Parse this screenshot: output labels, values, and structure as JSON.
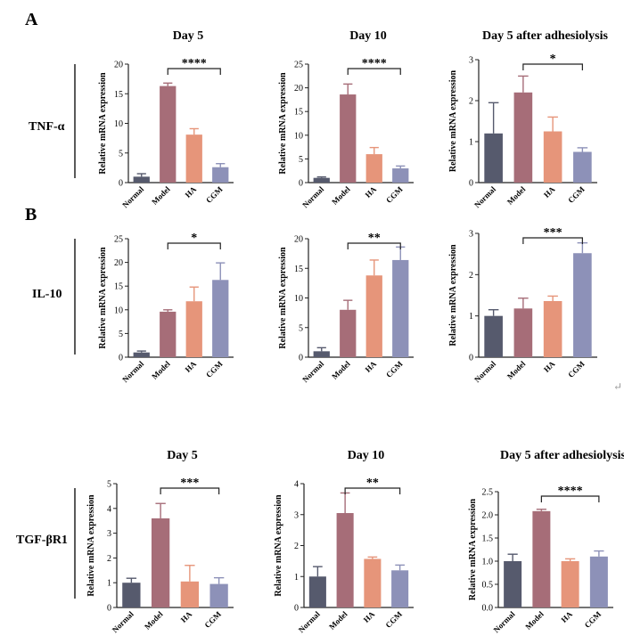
{
  "panel_letters": [
    "A",
    "B"
  ],
  "enter_symbol": "↵",
  "colors": {
    "Normal": "#565a6d",
    "Model": "#a66d78",
    "HA": "#e6957a",
    "CGM": "#8d91b8",
    "axis": "#222222"
  },
  "chart_data": [
    {
      "id": "tnf-d5",
      "row": "TNF-α",
      "title": "Day 5",
      "type": "bar",
      "categories": [
        "Normal",
        "Model",
        "HA",
        "CGM"
      ],
      "values": [
        1.0,
        16.3,
        8.1,
        2.6
      ],
      "errors": [
        0.5,
        0.5,
        1.0,
        0.6
      ],
      "ylim": [
        0,
        20
      ],
      "yticks": [
        0,
        5,
        10,
        15,
        20
      ],
      "ylabel": "Relative mRNA expression",
      "sig": {
        "from": "Model",
        "to": "CGM",
        "label": "****"
      }
    },
    {
      "id": "tnf-d10",
      "row": "TNF-α",
      "title": "Day 10",
      "type": "bar",
      "categories": [
        "Normal",
        "Model",
        "HA",
        "CGM"
      ],
      "values": [
        1.0,
        18.6,
        6.0,
        3.0
      ],
      "errors": [
        0.2,
        2.2,
        1.4,
        0.5
      ],
      "ylim": [
        0,
        25
      ],
      "yticks": [
        0,
        5,
        10,
        15,
        20,
        25
      ],
      "ylabel": "Relative mRNA expression",
      "sig": {
        "from": "Model",
        "to": "CGM",
        "label": "****"
      }
    },
    {
      "id": "tnf-adh",
      "row": "TNF-α",
      "title": "Day 5 after adhesiolysis",
      "type": "bar",
      "categories": [
        "Normal",
        "Model",
        "HA",
        "CGM"
      ],
      "values": [
        1.2,
        2.2,
        1.25,
        0.75
      ],
      "errors": [
        0.75,
        0.4,
        0.35,
        0.1
      ],
      "ylim": [
        0,
        3
      ],
      "yticks": [
        0,
        1,
        2,
        3
      ],
      "ylabel": "Relative mRNA expression",
      "sig": {
        "from": "Model",
        "to": "CGM",
        "label": "*"
      }
    },
    {
      "id": "il10-d5",
      "row": "IL-10",
      "title": "",
      "type": "bar",
      "categories": [
        "Normal",
        "Model",
        "HA",
        "CGM"
      ],
      "values": [
        1.0,
        9.6,
        11.8,
        16.3
      ],
      "errors": [
        0.3,
        0.4,
        3.0,
        3.6
      ],
      "ylim": [
        0,
        25
      ],
      "yticks": [
        0,
        5,
        10,
        15,
        20,
        25
      ],
      "ylabel": "Relative mRNA expression",
      "sig": {
        "from": "Model",
        "to": "CGM",
        "label": "*"
      }
    },
    {
      "id": "il10-d10",
      "row": "IL-10",
      "title": "",
      "type": "bar",
      "categories": [
        "Normal",
        "Model",
        "HA",
        "CGM"
      ],
      "values": [
        1.0,
        8.0,
        13.8,
        16.4
      ],
      "errors": [
        0.6,
        1.6,
        2.6,
        2.2
      ],
      "ylim": [
        0,
        20
      ],
      "yticks": [
        0,
        5,
        10,
        15,
        20
      ],
      "ylabel": "Relative mRNA expression",
      "sig": {
        "from": "Model",
        "to": "CGM",
        "label": "**"
      }
    },
    {
      "id": "il10-adh",
      "row": "IL-10",
      "title": "",
      "type": "bar",
      "categories": [
        "Normal",
        "Model",
        "HA",
        "CGM"
      ],
      "values": [
        1.0,
        1.18,
        1.36,
        2.52
      ],
      "errors": [
        0.15,
        0.25,
        0.12,
        0.25
      ],
      "ylim": [
        0,
        3
      ],
      "yticks": [
        0,
        1,
        2,
        3
      ],
      "ylabel": "Relative mRNA expression",
      "sig": {
        "from": "Model",
        "to": "CGM",
        "label": "***"
      }
    },
    {
      "id": "tgf-d5",
      "row": "TGF-βR1",
      "title": "Day 5",
      "type": "bar",
      "categories": [
        "Normal",
        "Model",
        "HA",
        "CGM"
      ],
      "values": [
        1.0,
        3.6,
        1.05,
        0.95
      ],
      "errors": [
        0.18,
        0.6,
        0.65,
        0.25
      ],
      "ylim": [
        0,
        5
      ],
      "yticks": [
        0,
        1,
        2,
        3,
        4,
        5
      ],
      "ylabel": "Relative mRNA expression",
      "sig": {
        "from": "Model",
        "to": "CGM",
        "label": "***"
      }
    },
    {
      "id": "tgf-d10",
      "row": "TGF-βR1",
      "title": "Day 10",
      "type": "bar",
      "categories": [
        "Normal",
        "Model",
        "HA",
        "CGM"
      ],
      "values": [
        1.0,
        3.05,
        1.57,
        1.2
      ],
      "errors": [
        0.32,
        0.65,
        0.06,
        0.17
      ],
      "ylim": [
        0,
        4
      ],
      "yticks": [
        0,
        1,
        2,
        3,
        4
      ],
      "ylabel": "Relative mRNA expression",
      "sig": {
        "from": "Model",
        "to": "CGM",
        "label": "**"
      }
    },
    {
      "id": "tgf-adh",
      "row": "TGF-βR1",
      "title": "Day 5 after adhesiolysis",
      "type": "bar",
      "categories": [
        "Normal",
        "Model",
        "HA",
        "CGM"
      ],
      "values": [
        1.0,
        2.08,
        1.0,
        1.1
      ],
      "errors": [
        0.15,
        0.04,
        0.05,
        0.12
      ],
      "ylim": [
        0,
        2.5
      ],
      "yticks": [
        "0.0",
        "0.5",
        "1.0",
        "1.5",
        "2.0",
        "2.5"
      ],
      "ylabel": "Relative mRNA expression",
      "sig": {
        "from": "Model",
        "to": "CGM",
        "label": "****"
      }
    }
  ],
  "row_labels": [
    "TNF-α",
    "IL-10",
    "TGF-βR1"
  ]
}
